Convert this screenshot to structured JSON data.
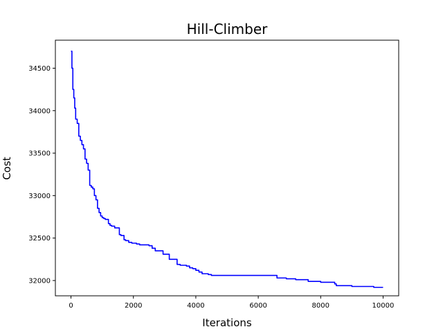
{
  "chart_data": {
    "type": "line",
    "title": "Hill-Climber",
    "xlabel": "Iterations",
    "ylabel": "Cost",
    "xlim": [
      -500,
      10500
    ],
    "ylim": [
      31820,
      34830
    ],
    "xticks": [
      0,
      2000,
      4000,
      6000,
      8000,
      10000
    ],
    "yticks": [
      32000,
      32500,
      33000,
      33500,
      34000,
      34500
    ],
    "xtick_labels": [
      "0",
      "2000",
      "4000",
      "6000",
      "8000",
      "10000"
    ],
    "ytick_labels": [
      "32000",
      "32500",
      "33000",
      "33500",
      "34000",
      "34500"
    ],
    "grid": false,
    "legend": "none",
    "series": [
      {
        "color": "#0000ff",
        "step": true,
        "x": [
          0,
          30,
          60,
          90,
          120,
          150,
          200,
          250,
          300,
          350,
          400,
          450,
          500,
          550,
          600,
          650,
          700,
          750,
          800,
          850,
          900,
          950,
          1000,
          1050,
          1100,
          1200,
          1250,
          1300,
          1400,
          1550,
          1600,
          1700,
          1750,
          1850,
          1950,
          2100,
          2200,
          2500,
          2600,
          2700,
          2950,
          3150,
          3400,
          3500,
          3700,
          3800,
          3900,
          4000,
          4100,
          4200,
          4400,
          4500,
          4600,
          4700,
          4800,
          6600,
          6900,
          7200,
          7600,
          8000,
          8450,
          8500,
          9000,
          9700,
          10000
        ],
        "y": [
          34700,
          34500,
          34250,
          34150,
          34030,
          33900,
          33850,
          33700,
          33650,
          33600,
          33550,
          33430,
          33380,
          33300,
          33120,
          33100,
          33080,
          33000,
          32950,
          32850,
          32800,
          32760,
          32740,
          32730,
          32720,
          32670,
          32650,
          32640,
          32620,
          32540,
          32530,
          32480,
          32470,
          32450,
          32440,
          32430,
          32420,
          32410,
          32380,
          32350,
          32310,
          32250,
          32190,
          32180,
          32170,
          32150,
          32140,
          32120,
          32100,
          32080,
          32070,
          32060,
          32060,
          32060,
          32060,
          32030,
          32020,
          32010,
          31990,
          31980,
          31960,
          31940,
          31930,
          31920,
          31920
        ]
      }
    ]
  }
}
